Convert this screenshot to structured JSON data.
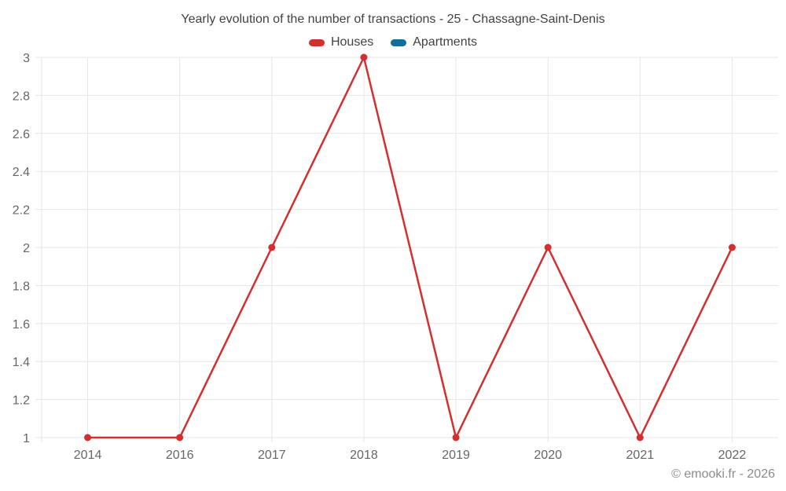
{
  "title": "Yearly evolution of the number of transactions - 25 - Chassagne-Saint-Denis",
  "legend": {
    "items": [
      {
        "label": "Houses",
        "color": "#d32f2f"
      },
      {
        "label": "Apartments",
        "color": "#0e6e9d"
      }
    ]
  },
  "footer": {
    "copyright": "© emooki.fr - 2026"
  },
  "colors": {
    "houses_series": "#d32f2f",
    "apartments_series": "#0e6e9d",
    "gridline": "#e6e6e6",
    "title_text": "#424242",
    "axis_text": "#666666",
    "copyright_text": "#8c8c8c"
  },
  "chart_data": {
    "type": "line",
    "title": "Yearly evolution of the number of transactions - 25 - Chassagne-Saint-Denis",
    "categories": [
      "2014",
      "2016",
      "2017",
      "2018",
      "2019",
      "2020",
      "2021",
      "2022"
    ],
    "series": [
      {
        "name": "Houses",
        "color": "#d32f2f",
        "values": [
          1,
          1,
          2,
          3,
          1,
          2,
          1,
          2
        ]
      },
      {
        "name": "Apartments",
        "color": "#0e6e9d",
        "values": []
      }
    ],
    "xlabel": "",
    "ylabel": "",
    "ylim": [
      1,
      3
    ],
    "ytick_step": 0.2,
    "ytick_labels": [
      "1",
      "1.2",
      "1.4",
      "1.6",
      "1.8",
      "2",
      "2.2",
      "2.4",
      "2.6",
      "2.8",
      "3"
    ],
    "grid": true,
    "legend_position": "top",
    "marker": "circle"
  }
}
